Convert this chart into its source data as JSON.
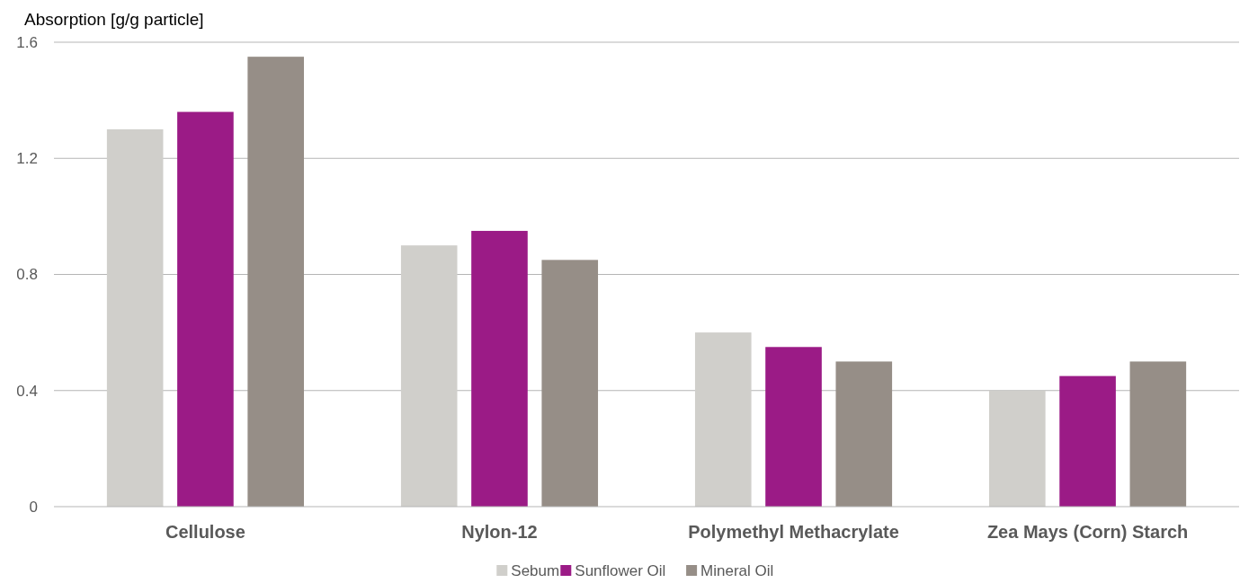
{
  "chart_data": {
    "type": "bar",
    "ylabel": "Absorption [g/g particle]",
    "categories": [
      "Cellulose",
      "Nylon-12",
      "Polymethyl Methacrylate",
      "Zea Mays (Corn) Starch"
    ],
    "series": [
      {
        "name": "Sebum",
        "color": "#d0cfcb",
        "values": [
          1.3,
          0.9,
          0.6,
          0.4
        ]
      },
      {
        "name": "Sunflower Oil",
        "color": "#9b1b86",
        "values": [
          1.36,
          0.95,
          0.55,
          0.45
        ]
      },
      {
        "name": "Mineral Oil",
        "color": "#968e87",
        "values": [
          1.55,
          0.85,
          0.5,
          0.5
        ]
      }
    ],
    "ylim": [
      0,
      1.6
    ],
    "yticks": [
      0,
      0.4,
      0.8,
      1.2,
      1.6
    ],
    "grid": "y",
    "legend": "bottom"
  }
}
